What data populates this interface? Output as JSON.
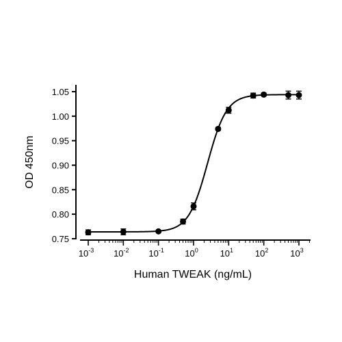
{
  "chart_data": {
    "type": "scatter",
    "title": "",
    "xlabel": "Human TWEAK (ng/mL)",
    "ylabel": "OD 450nm",
    "x_scale": "log",
    "xlim": [
      0.001,
      1000
    ],
    "ylim": [
      0.75,
      1.05
    ],
    "x_tick_labels": [
      {
        "base": "10",
        "exp": "-3",
        "value": 0.001
      },
      {
        "base": "10",
        "exp": "-2",
        "value": 0.01
      },
      {
        "base": "10",
        "exp": "-1",
        "value": 0.1
      },
      {
        "base": "10",
        "exp": "0",
        "value": 1
      },
      {
        "base": "10",
        "exp": "1",
        "value": 10
      },
      {
        "base": "10",
        "exp": "2",
        "value": 100
      },
      {
        "base": "10",
        "exp": "3",
        "value": 1000
      }
    ],
    "y_ticks": [
      "0.75",
      "0.80",
      "0.85",
      "0.90",
      "0.95",
      "1.00",
      "1.05"
    ],
    "grid": false,
    "legend": "none",
    "series": [
      {
        "points": [
          {
            "x": 0.001,
            "y": 0.763,
            "err": 0.005
          },
          {
            "x": 0.01,
            "y": 0.764,
            "err": 0.006
          },
          {
            "x": 0.1,
            "y": 0.765,
            "err": 0.002
          },
          {
            "x": 0.5,
            "y": 0.785,
            "err": 0.005
          },
          {
            "x": 1,
            "y": 0.816,
            "err": 0.007
          },
          {
            "x": 5,
            "y": 0.974,
            "err": 0.003
          },
          {
            "x": 10,
            "y": 1.012,
            "err": 0.006
          },
          {
            "x": 50,
            "y": 1.042,
            "err": 0.005
          },
          {
            "x": 100,
            "y": 1.044,
            "err": 0.003
          },
          {
            "x": 500,
            "y": 1.043,
            "err": 0.008
          },
          {
            "x": 1000,
            "y": 1.043,
            "err": 0.008
          }
        ],
        "fit": {
          "model": "4PL",
          "bottom": 0.764,
          "top": 1.044,
          "ec50": 2.5,
          "hill": 1.6
        }
      }
    ],
    "colors": {
      "marker": "#000000",
      "line": "#000000",
      "axis": "#000000"
    }
  }
}
